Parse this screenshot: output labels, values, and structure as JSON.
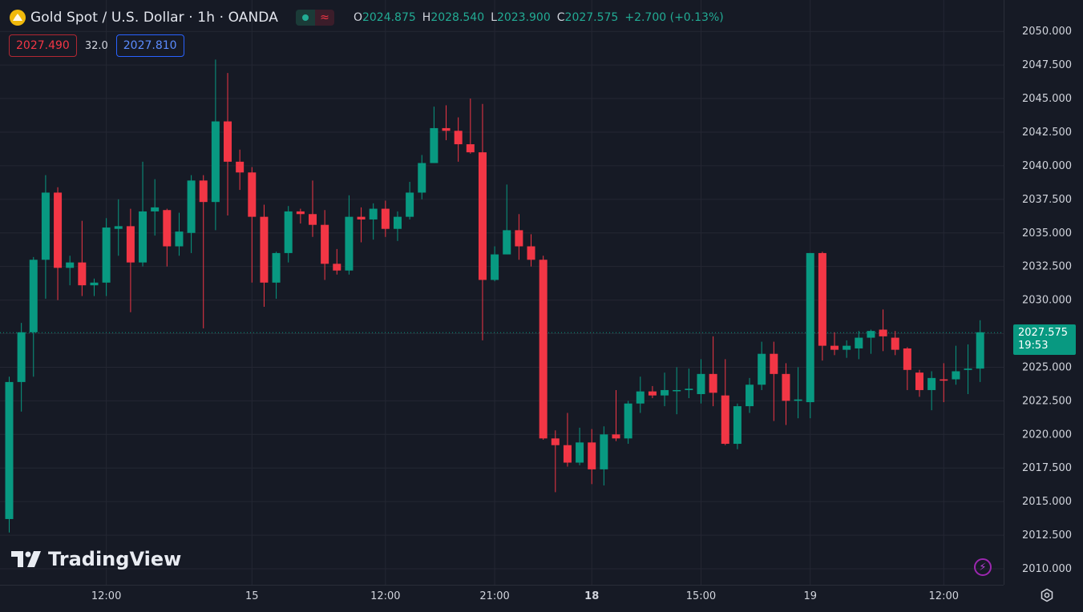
{
  "header": {
    "title": "Gold Spot / U.S. Dollar · 1h · OANDA",
    "ohlc": {
      "o_label": "O",
      "o": "2024.875",
      "h_label": "H",
      "h": "2028.540",
      "l_label": "L",
      "l": "2023.900",
      "c_label": "C",
      "c": "2027.575",
      "change": "+2.700 (+0.13%)"
    },
    "bid": "2027.490",
    "spread": "32.0",
    "ask": "2027.810"
  },
  "last_price": {
    "value": "2027.575",
    "countdown": "19:53"
  },
  "watermark": "TradingView",
  "colors": {
    "up": "#089981",
    "down": "#f23645",
    "background": "#161a25",
    "grid": "#242733",
    "axis_text": "#d1d4dc"
  },
  "icons": {
    "settings": "gear-icon",
    "alert": "lightning-icon",
    "symbol": "gold-coin-icon"
  },
  "chart_data": {
    "type": "candlestick",
    "title": "Gold Spot / U.S. Dollar · 1h · OANDA",
    "ylim": [
      2009,
      2051.5
    ],
    "y_ticks": [
      "2010.000",
      "2012.500",
      "2015.000",
      "2017.500",
      "2020.000",
      "2022.500",
      "2025.000",
      "2027.500",
      "2030.000",
      "2032.500",
      "2035.000",
      "2037.500",
      "2040.000",
      "2042.500",
      "2045.000",
      "2047.500",
      "2050.000"
    ],
    "x_ticks": [
      {
        "index": 8,
        "label": "12:00",
        "bold": false
      },
      {
        "index": 20,
        "label": "15",
        "bold": false
      },
      {
        "index": 31,
        "label": "12:00",
        "bold": false
      },
      {
        "index": 40,
        "label": "21:00",
        "bold": false
      },
      {
        "index": 48,
        "label": "18",
        "bold": true
      },
      {
        "index": 57,
        "label": "15:00",
        "bold": false
      },
      {
        "index": 66,
        "label": "19",
        "bold": false
      },
      {
        "index": 77,
        "label": "12:00",
        "bold": false
      }
    ],
    "candles": [
      {
        "o": 2013.7,
        "h": 2024.3,
        "l": 2012.7,
        "c": 2023.9
      },
      {
        "o": 2023.9,
        "h": 2028.3,
        "l": 2021.7,
        "c": 2027.6
      },
      {
        "o": 2027.6,
        "h": 2033.2,
        "l": 2024.3,
        "c": 2033.0
      },
      {
        "o": 2033.0,
        "h": 2039.3,
        "l": 2030.1,
        "c": 2038.0
      },
      {
        "o": 2038.0,
        "h": 2038.4,
        "l": 2030.0,
        "c": 2032.4
      },
      {
        "o": 2032.4,
        "h": 2033.3,
        "l": 2031.1,
        "c": 2032.8
      },
      {
        "o": 2032.8,
        "h": 2035.9,
        "l": 2030.3,
        "c": 2031.1
      },
      {
        "o": 2031.1,
        "h": 2031.6,
        "l": 2030.3,
        "c": 2031.3
      },
      {
        "o": 2031.3,
        "h": 2036.1,
        "l": 2030.3,
        "c": 2035.4
      },
      {
        "o": 2035.3,
        "h": 2037.5,
        "l": 2033.3,
        "c": 2035.5
      },
      {
        "o": 2035.5,
        "h": 2036.8,
        "l": 2029.1,
        "c": 2032.8
      },
      {
        "o": 2032.8,
        "h": 2040.3,
        "l": 2032.5,
        "c": 2036.6
      },
      {
        "o": 2036.6,
        "h": 2039.0,
        "l": 2034.8,
        "c": 2036.9
      },
      {
        "o": 2036.7,
        "h": 2036.8,
        "l": 2032.5,
        "c": 2034.0
      },
      {
        "o": 2034.0,
        "h": 2036.5,
        "l": 2033.3,
        "c": 2035.1
      },
      {
        "o": 2035.0,
        "h": 2039.3,
        "l": 2033.5,
        "c": 2038.9
      },
      {
        "o": 2038.9,
        "h": 2039.3,
        "l": 2027.9,
        "c": 2037.3
      },
      {
        "o": 2037.3,
        "h": 2047.9,
        "l": 2035.2,
        "c": 2043.3
      },
      {
        "o": 2043.3,
        "h": 2046.9,
        "l": 2036.3,
        "c": 2040.3
      },
      {
        "o": 2040.3,
        "h": 2041.2,
        "l": 2038.2,
        "c": 2039.5
      },
      {
        "o": 2039.5,
        "h": 2039.9,
        "l": 2031.3,
        "c": 2036.2
      },
      {
        "o": 2036.2,
        "h": 2037.1,
        "l": 2029.5,
        "c": 2031.3
      },
      {
        "o": 2031.3,
        "h": 2033.6,
        "l": 2030.1,
        "c": 2033.5
      },
      {
        "o": 2033.5,
        "h": 2037.0,
        "l": 2032.8,
        "c": 2036.6
      },
      {
        "o": 2036.6,
        "h": 2036.8,
        "l": 2035.7,
        "c": 2036.4
      },
      {
        "o": 2036.4,
        "h": 2038.9,
        "l": 2034.7,
        "c": 2035.6
      },
      {
        "o": 2035.6,
        "h": 2036.7,
        "l": 2031.5,
        "c": 2032.7
      },
      {
        "o": 2032.7,
        "h": 2033.8,
        "l": 2031.9,
        "c": 2032.2
      },
      {
        "o": 2032.2,
        "h": 2037.8,
        "l": 2031.9,
        "c": 2036.2
      },
      {
        "o": 2036.2,
        "h": 2036.9,
        "l": 2034.3,
        "c": 2036.0
      },
      {
        "o": 2036.0,
        "h": 2037.2,
        "l": 2034.5,
        "c": 2036.8
      },
      {
        "o": 2036.8,
        "h": 2037.4,
        "l": 2034.7,
        "c": 2035.3
      },
      {
        "o": 2035.3,
        "h": 2036.6,
        "l": 2034.4,
        "c": 2036.2
      },
      {
        "o": 2036.2,
        "h": 2038.8,
        "l": 2036.0,
        "c": 2038.0
      },
      {
        "o": 2038.0,
        "h": 2040.8,
        "l": 2037.5,
        "c": 2040.2
      },
      {
        "o": 2040.2,
        "h": 2044.4,
        "l": 2040.2,
        "c": 2042.8
      },
      {
        "o": 2042.8,
        "h": 2044.5,
        "l": 2041.9,
        "c": 2042.6
      },
      {
        "o": 2042.6,
        "h": 2043.6,
        "l": 2040.3,
        "c": 2041.6
      },
      {
        "o": 2041.6,
        "h": 2045.0,
        "l": 2040.9,
        "c": 2041.0
      },
      {
        "o": 2041.0,
        "h": 2044.6,
        "l": 2027.0,
        "c": 2031.5
      },
      {
        "o": 2031.5,
        "h": 2034.0,
        "l": 2031.4,
        "c": 2033.4
      },
      {
        "o": 2033.4,
        "h": 2038.6,
        "l": 2033.4,
        "c": 2035.2
      },
      {
        "o": 2035.2,
        "h": 2036.4,
        "l": 2033.0,
        "c": 2034.0
      },
      {
        "o": 2034.0,
        "h": 2034.9,
        "l": 2032.5,
        "c": 2033.0
      },
      {
        "o": 2033.0,
        "h": 2033.3,
        "l": 2019.6,
        "c": 2019.7
      },
      {
        "o": 2019.7,
        "h": 2020.3,
        "l": 2015.7,
        "c": 2019.2
      },
      {
        "o": 2019.2,
        "h": 2021.6,
        "l": 2017.6,
        "c": 2017.9
      },
      {
        "o": 2017.9,
        "h": 2020.5,
        "l": 2017.7,
        "c": 2019.4
      },
      {
        "o": 2019.4,
        "h": 2020.4,
        "l": 2016.3,
        "c": 2017.4
      },
      {
        "o": 2017.4,
        "h": 2020.6,
        "l": 2016.2,
        "c": 2020.0
      },
      {
        "o": 2020.0,
        "h": 2023.3,
        "l": 2019.5,
        "c": 2019.7
      },
      {
        "o": 2019.7,
        "h": 2022.5,
        "l": 2019.3,
        "c": 2022.3
      },
      {
        "o": 2022.3,
        "h": 2024.3,
        "l": 2021.6,
        "c": 2023.2
      },
      {
        "o": 2023.2,
        "h": 2023.6,
        "l": 2022.7,
        "c": 2022.9
      },
      {
        "o": 2022.9,
        "h": 2024.6,
        "l": 2022.1,
        "c": 2023.3
      },
      {
        "o": 2023.3,
        "h": 2025.0,
        "l": 2021.5,
        "c": 2023.3
      },
      {
        "o": 2023.3,
        "h": 2024.9,
        "l": 2022.7,
        "c": 2023.4
      },
      {
        "o": 2023.0,
        "h": 2025.6,
        "l": 2022.3,
        "c": 2024.5
      },
      {
        "o": 2024.5,
        "h": 2027.3,
        "l": 2022.1,
        "c": 2023.1
      },
      {
        "o": 2022.9,
        "h": 2025.6,
        "l": 2019.2,
        "c": 2019.3
      },
      {
        "o": 2019.3,
        "h": 2022.3,
        "l": 2018.9,
        "c": 2022.1
      },
      {
        "o": 2022.1,
        "h": 2024.2,
        "l": 2021.6,
        "c": 2023.7
      },
      {
        "o": 2023.7,
        "h": 2026.9,
        "l": 2023.3,
        "c": 2026.0
      },
      {
        "o": 2026.0,
        "h": 2026.9,
        "l": 2021.0,
        "c": 2024.5
      },
      {
        "o": 2024.5,
        "h": 2025.3,
        "l": 2020.7,
        "c": 2022.5
      },
      {
        "o": 2022.5,
        "h": 2025.0,
        "l": 2021.2,
        "c": 2022.6
      },
      {
        "o": 2022.4,
        "h": 2033.5,
        "l": 2021.2,
        "c": 2033.5
      },
      {
        "o": 2033.5,
        "h": 2033.6,
        "l": 2025.5,
        "c": 2026.6
      },
      {
        "o": 2026.6,
        "h": 2027.6,
        "l": 2025.9,
        "c": 2026.3
      },
      {
        "o": 2026.3,
        "h": 2027.0,
        "l": 2025.7,
        "c": 2026.6
      },
      {
        "o": 2026.4,
        "h": 2027.7,
        "l": 2025.6,
        "c": 2027.2
      },
      {
        "o": 2027.2,
        "h": 2027.8,
        "l": 2026.0,
        "c": 2027.7
      },
      {
        "o": 2027.8,
        "h": 2029.3,
        "l": 2026.2,
        "c": 2027.3
      },
      {
        "o": 2027.2,
        "h": 2027.7,
        "l": 2025.9,
        "c": 2026.3
      },
      {
        "o": 2026.4,
        "h": 2026.5,
        "l": 2023.3,
        "c": 2024.8
      },
      {
        "o": 2024.6,
        "h": 2024.8,
        "l": 2022.8,
        "c": 2023.3
      },
      {
        "o": 2023.3,
        "h": 2024.7,
        "l": 2021.8,
        "c": 2024.2
      },
      {
        "o": 2024.1,
        "h": 2025.3,
        "l": 2022.4,
        "c": 2024.0
      },
      {
        "o": 2024.1,
        "h": 2026.6,
        "l": 2023.7,
        "c": 2024.7
      },
      {
        "o": 2024.8,
        "h": 2026.7,
        "l": 2023.0,
        "c": 2024.9
      },
      {
        "o": 2024.9,
        "h": 2028.5,
        "l": 2023.9,
        "c": 2027.6
      }
    ]
  }
}
